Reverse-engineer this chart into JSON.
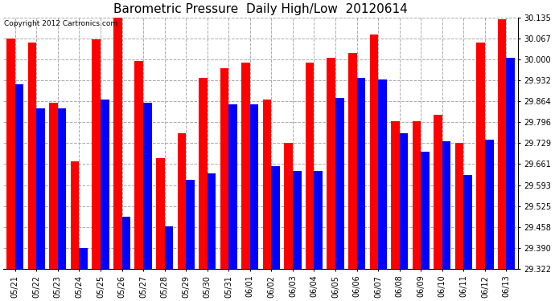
{
  "title": "Barometric Pressure  Daily High/Low  20120614",
  "copyright": "Copyright 2012 Cartronics.com",
  "dates": [
    "05/21",
    "05/22",
    "05/23",
    "05/24",
    "05/25",
    "05/26",
    "05/27",
    "05/28",
    "05/29",
    "05/30",
    "05/31",
    "06/01",
    "06/02",
    "06/03",
    "06/04",
    "06/05",
    "06/06",
    "06/07",
    "06/08",
    "06/09",
    "06/10",
    "06/11",
    "06/12",
    "06/13"
  ],
  "highs": [
    30.068,
    30.055,
    29.86,
    29.67,
    30.065,
    30.14,
    29.995,
    29.68,
    29.76,
    29.94,
    29.97,
    29.99,
    29.87,
    29.73,
    29.99,
    30.005,
    30.02,
    30.08,
    29.8,
    29.8,
    29.82,
    29.73,
    30.055,
    30.13
  ],
  "lows": [
    29.92,
    29.84,
    29.84,
    29.39,
    29.87,
    29.49,
    29.86,
    29.46,
    29.61,
    29.63,
    29.855,
    29.855,
    29.655,
    29.64,
    29.64,
    29.875,
    29.94,
    29.935,
    29.76,
    29.7,
    29.735,
    29.625,
    29.74,
    30.005
  ],
  "ymin": 29.322,
  "ymax": 30.135,
  "yticks": [
    29.322,
    29.39,
    29.458,
    29.525,
    29.593,
    29.661,
    29.729,
    29.796,
    29.864,
    29.932,
    30.0,
    30.067,
    30.135
  ],
  "high_color": "#ff0000",
  "low_color": "#0000ff",
  "bg_color": "#ffffff",
  "grid_color": "#aaaaaa",
  "title_fontsize": 11,
  "tick_fontsize": 7,
  "copyright_fontsize": 6.5
}
